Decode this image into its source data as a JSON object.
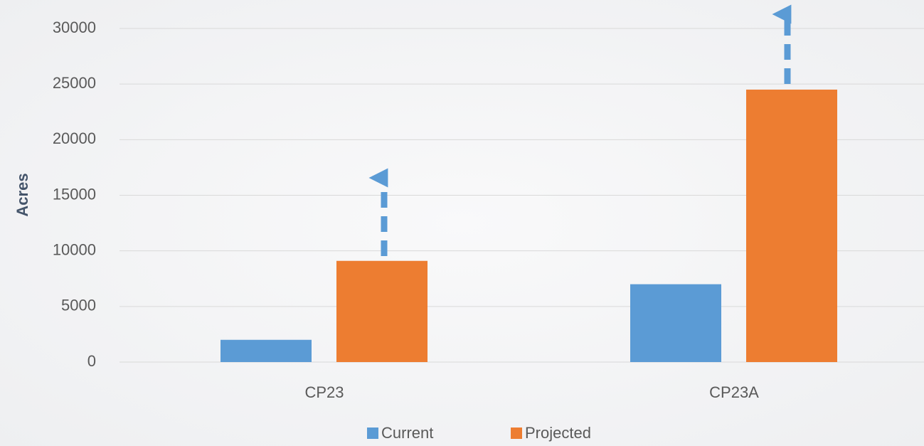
{
  "chart_data": {
    "type": "bar",
    "y_label": "Acres",
    "categories": [
      "CP23",
      "CP23A"
    ],
    "series": [
      {
        "name": "Current",
        "color": "#5b9bd5",
        "values": [
          2000,
          7000
        ]
      },
      {
        "name": "Projected",
        "color": "#ed7d31",
        "values": [
          9100,
          24500
        ]
      }
    ],
    "ylim": [
      0,
      30000
    ],
    "yticks": [
      0,
      5000,
      10000,
      15000,
      20000,
      25000,
      30000
    ],
    "grid": true,
    "legend": "bottom"
  }
}
